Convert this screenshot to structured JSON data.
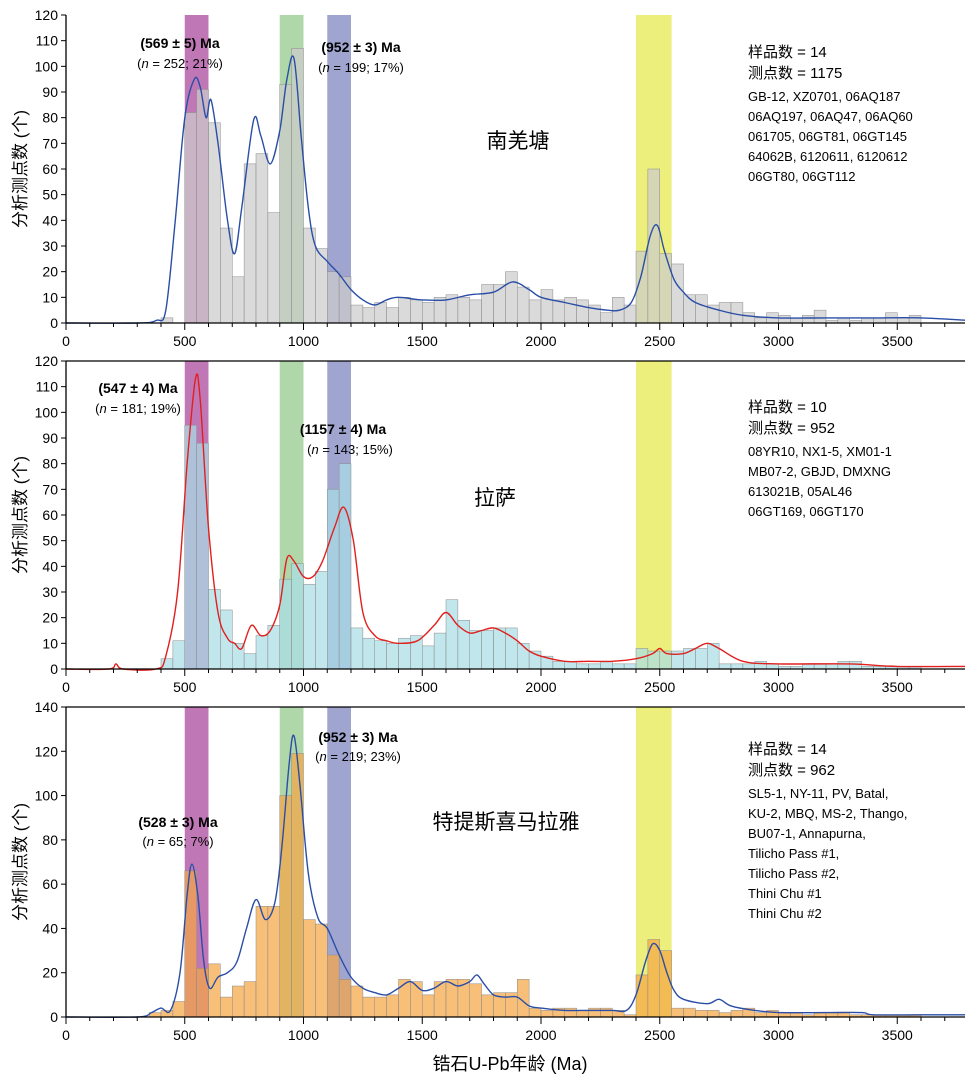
{
  "chart_data": [
    {
      "type": "bar",
      "panel": "top",
      "region": "南羌塘",
      "ylabel": "分析测点数 (个)",
      "ylim": [
        0,
        120
      ],
      "yticks": [
        0,
        10,
        20,
        30,
        40,
        50,
        60,
        70,
        80,
        90,
        100,
        110,
        120
      ],
      "xlim": [
        0,
        3800
      ],
      "xticks": [
        0,
        500,
        1000,
        1500,
        2000,
        2500,
        3000,
        3500
      ],
      "bin_width": 50,
      "bar_color": "#cccccc",
      "curve_color": "#2a4ea6",
      "x": [
        400,
        500,
        550,
        600,
        650,
        700,
        750,
        800,
        850,
        900,
        950,
        1000,
        1050,
        1100,
        1150,
        1200,
        1250,
        1300,
        1350,
        1400,
        1450,
        1500,
        1550,
        1600,
        1650,
        1700,
        1750,
        1800,
        1850,
        1900,
        1950,
        2000,
        2050,
        2100,
        2150,
        2200,
        2250,
        2300,
        2350,
        2400,
        2450,
        2500,
        2550,
        2600,
        2650,
        2700,
        2750,
        2800,
        2850,
        2900,
        2950,
        3000,
        3050,
        3100,
        3150,
        3200,
        3250,
        3300,
        3350,
        3400,
        3450,
        3500,
        3550
      ],
      "values": [
        2,
        82,
        91,
        78,
        37,
        18,
        62,
        66,
        43,
        93,
        107,
        37,
        29,
        20,
        18,
        7,
        6,
        8,
        6,
        10,
        9,
        8,
        10,
        11,
        10,
        9,
        15,
        15,
        20,
        14,
        9,
        13,
        9,
        10,
        9,
        7,
        4,
        10,
        7,
        28,
        60,
        27,
        23,
        11,
        11,
        7,
        8,
        8,
        4,
        2,
        4,
        3,
        2,
        3,
        5,
        1,
        2,
        1,
        2,
        2,
        4,
        2,
        3
      ],
      "kde": [
        [
          0,
          0
        ],
        [
          300,
          0
        ],
        [
          380,
          1
        ],
        [
          420,
          5
        ],
        [
          460,
          40
        ],
        [
          500,
          80
        ],
        [
          540,
          95
        ],
        [
          565,
          92
        ],
        [
          590,
          80
        ],
        [
          610,
          87
        ],
        [
          640,
          70
        ],
        [
          680,
          40
        ],
        [
          710,
          27
        ],
        [
          740,
          45
        ],
        [
          790,
          79
        ],
        [
          820,
          73
        ],
        [
          860,
          62
        ],
        [
          900,
          75
        ],
        [
          930,
          95
        ],
        [
          960,
          103
        ],
        [
          990,
          73
        ],
        [
          1020,
          45
        ],
        [
          1050,
          30
        ],
        [
          1100,
          24
        ],
        [
          1150,
          19
        ],
        [
          1200,
          13
        ],
        [
          1250,
          9
        ],
        [
          1300,
          7
        ],
        [
          1350,
          9
        ],
        [
          1400,
          10
        ],
        [
          1500,
          9
        ],
        [
          1600,
          9
        ],
        [
          1700,
          11
        ],
        [
          1800,
          12
        ],
        [
          1880,
          16
        ],
        [
          1950,
          13
        ],
        [
          2000,
          10
        ],
        [
          2100,
          8
        ],
        [
          2200,
          6
        ],
        [
          2280,
          5
        ],
        [
          2330,
          5
        ],
        [
          2380,
          8
        ],
        [
          2420,
          18
        ],
        [
          2460,
          34
        ],
        [
          2490,
          38
        ],
        [
          2520,
          28
        ],
        [
          2560,
          17
        ],
        [
          2600,
          12
        ],
        [
          2650,
          8
        ],
        [
          2750,
          5
        ],
        [
          2850,
          3
        ],
        [
          3000,
          2
        ],
        [
          3200,
          2
        ],
        [
          3400,
          2
        ],
        [
          3600,
          2
        ],
        [
          3800,
          1
        ]
      ],
      "peaks": [
        {
          "label": "(569 ± 5) Ma",
          "n_label": "n",
          "stat": " = 252; 21%)"
        },
        {
          "label": "(952 ± 3) Ma",
          "n_label": "n",
          "stat": " = 199; 17%)"
        }
      ],
      "info": {
        "samples": "样品数 = 14",
        "points": "测点数 = 1175",
        "names": [
          "GB-12, XZ0701, 06AQ187",
          "06AQ197, 06AQ47, 06AQ60",
          "061705, 06GT81, 06GT145",
          "64062B, 6120611, 6120612",
          "06GT80, 06GT112"
        ]
      }
    },
    {
      "type": "bar",
      "panel": "middle",
      "region": "拉萨",
      "ylabel": "分析测点数 (个)",
      "ylim": [
        0,
        120
      ],
      "yticks": [
        0,
        10,
        20,
        30,
        40,
        50,
        60,
        70,
        80,
        90,
        100,
        110,
        120
      ],
      "xlim": [
        0,
        3800
      ],
      "xticks": [
        0,
        500,
        1000,
        1500,
        2000,
        2500,
        3000,
        3500
      ],
      "bin_width": 50,
      "bar_color": "#a9dee6",
      "curve_color": "#e0201e",
      "x": [
        400,
        450,
        500,
        550,
        600,
        650,
        700,
        750,
        800,
        850,
        900,
        950,
        1000,
        1050,
        1100,
        1150,
        1200,
        1250,
        1300,
        1350,
        1400,
        1450,
        1500,
        1550,
        1600,
        1650,
        1700,
        1750,
        1800,
        1850,
        1900,
        1950,
        2000,
        2050,
        2100,
        2150,
        2200,
        2250,
        2300,
        2350,
        2400,
        2450,
        2500,
        2550,
        2600,
        2650,
        2700,
        2750,
        2800,
        2850,
        2900,
        2950,
        3000,
        3050,
        3100,
        3150,
        3200,
        3250,
        3300,
        3350,
        3400,
        3450,
        3500,
        3550
      ],
      "values": [
        4,
        11,
        95,
        88,
        31,
        23,
        10,
        6,
        13,
        17,
        35,
        41,
        33,
        38,
        70,
        80,
        16,
        12,
        11,
        10,
        12,
        13,
        9,
        14,
        27,
        19,
        15,
        15,
        16,
        16,
        10,
        7,
        5,
        3,
        3,
        2,
        2,
        3,
        2,
        2,
        8,
        7,
        7,
        7,
        8,
        8,
        10,
        2,
        2,
        2,
        3,
        2,
        1,
        1,
        2,
        2,
        2,
        3,
        3,
        1,
        1,
        1,
        1,
        1
      ],
      "kde": [
        [
          0,
          0
        ],
        [
          180,
          0
        ],
        [
          210,
          2
        ],
        [
          240,
          0
        ],
        [
          380,
          0
        ],
        [
          420,
          5
        ],
        [
          470,
          30
        ],
        [
          510,
          80
        ],
        [
          545,
          113
        ],
        [
          565,
          105
        ],
        [
          600,
          55
        ],
        [
          640,
          22
        ],
        [
          680,
          12
        ],
        [
          710,
          10
        ],
        [
          740,
          8
        ],
        [
          780,
          17
        ],
        [
          820,
          13
        ],
        [
          860,
          15
        ],
        [
          900,
          25
        ],
        [
          930,
          43
        ],
        [
          960,
          42
        ],
        [
          1000,
          36
        ],
        [
          1040,
          36
        ],
        [
          1080,
          42
        ],
        [
          1130,
          55
        ],
        [
          1170,
          63
        ],
        [
          1210,
          50
        ],
        [
          1250,
          22
        ],
        [
          1300,
          13
        ],
        [
          1350,
          11
        ],
        [
          1400,
          10
        ],
        [
          1480,
          11
        ],
        [
          1550,
          17
        ],
        [
          1600,
          22
        ],
        [
          1650,
          17
        ],
        [
          1700,
          14
        ],
        [
          1750,
          15
        ],
        [
          1800,
          16
        ],
        [
          1850,
          14
        ],
        [
          1900,
          11
        ],
        [
          1950,
          7
        ],
        [
          2000,
          5
        ],
        [
          2100,
          3
        ],
        [
          2200,
          3
        ],
        [
          2300,
          3
        ],
        [
          2400,
          4
        ],
        [
          2470,
          6
        ],
        [
          2500,
          8
        ],
        [
          2530,
          6
        ],
        [
          2600,
          6
        ],
        [
          2650,
          8
        ],
        [
          2700,
          10
        ],
        [
          2750,
          8
        ],
        [
          2850,
          3
        ],
        [
          3000,
          2
        ],
        [
          3300,
          2
        ],
        [
          3500,
          1
        ],
        [
          3800,
          1
        ]
      ],
      "peaks": [
        {
          "label": "(547 ± 4) Ma",
          "n_label": "n",
          "stat": " = 181; 19%)"
        },
        {
          "label": "(1157 ± 4) Ma",
          "n_label": "n",
          "stat": " = 143; 15%)"
        }
      ],
      "info": {
        "samples": "样品数 = 10",
        "points": "测点数 = 952",
        "names": [
          "08YR10, NX1-5, XM01-1",
          "MB07-2, GBJD, DMXNG",
          "613021B, 05AL46",
          "06GT169, 06GT170"
        ]
      }
    },
    {
      "type": "bar",
      "panel": "bottom",
      "region": "特提斯喜马拉雅",
      "ylabel": "分析测点数 (个)",
      "xlabel": "锆石U-Pb年龄 (Ma)",
      "ylim": [
        0,
        140
      ],
      "yticks": [
        0,
        20,
        40,
        60,
        80,
        100,
        120,
        140
      ],
      "xlim": [
        0,
        3800
      ],
      "xticks": [
        0,
        500,
        1000,
        1500,
        2000,
        2500,
        3000,
        3500
      ],
      "bin_width": 50,
      "bar_color": "#f5a645",
      "curve_color": "#2a4ea6",
      "x": [
        350,
        400,
        450,
        500,
        550,
        600,
        650,
        700,
        750,
        800,
        850,
        900,
        950,
        1000,
        1050,
        1100,
        1150,
        1200,
        1250,
        1300,
        1350,
        1400,
        1450,
        1500,
        1550,
        1600,
        1650,
        1700,
        1750,
        1800,
        1850,
        1900,
        1950,
        2000,
        2050,
        2100,
        2150,
        2200,
        2250,
        2300,
        2350,
        2400,
        2450,
        2500,
        2550,
        2600,
        2650,
        2700,
        2750,
        2800,
        2850,
        2900,
        2950,
        3000,
        3050,
        3100,
        3150,
        3200,
        3250,
        3300,
        3350,
        3400,
        3450,
        3500,
        3550
      ],
      "values": [
        2,
        3,
        7,
        66,
        22,
        24,
        9,
        14,
        16,
        50,
        50,
        100,
        119,
        44,
        42,
        28,
        17,
        14,
        9,
        9,
        10,
        17,
        16,
        10,
        16,
        17,
        17,
        15,
        10,
        11,
        11,
        17,
        4,
        3,
        4,
        4,
        3,
        4,
        4,
        3,
        1,
        19,
        35,
        30,
        4,
        4,
        3,
        3,
        2,
        3,
        4,
        2,
        3,
        2,
        2,
        1,
        2,
        2,
        2,
        1,
        1,
        1,
        1,
        1,
        1
      ],
      "kde": [
        [
          0,
          0
        ],
        [
          300,
          0
        ],
        [
          360,
          2
        ],
        [
          400,
          4
        ],
        [
          440,
          3
        ],
        [
          480,
          20
        ],
        [
          510,
          55
        ],
        [
          530,
          69
        ],
        [
          555,
          55
        ],
        [
          580,
          25
        ],
        [
          605,
          13
        ],
        [
          640,
          18
        ],
        [
          680,
          20
        ],
        [
          720,
          25
        ],
        [
          760,
          40
        ],
        [
          800,
          53
        ],
        [
          840,
          44
        ],
        [
          880,
          52
        ],
        [
          910,
          78
        ],
        [
          940,
          115
        ],
        [
          960,
          127
        ],
        [
          985,
          105
        ],
        [
          1020,
          65
        ],
        [
          1060,
          45
        ],
        [
          1100,
          40
        ],
        [
          1150,
          28
        ],
        [
          1200,
          18
        ],
        [
          1250,
          13
        ],
        [
          1300,
          11
        ],
        [
          1350,
          10
        ],
        [
          1400,
          13
        ],
        [
          1450,
          16
        ],
        [
          1500,
          12
        ],
        [
          1550,
          13
        ],
        [
          1600,
          16
        ],
        [
          1650,
          14
        ],
        [
          1700,
          16
        ],
        [
          1730,
          19
        ],
        [
          1760,
          15
        ],
        [
          1800,
          10
        ],
        [
          1850,
          9
        ],
        [
          1900,
          9
        ],
        [
          1950,
          5
        ],
        [
          2000,
          4
        ],
        [
          2100,
          3
        ],
        [
          2200,
          3
        ],
        [
          2300,
          3
        ],
        [
          2360,
          3
        ],
        [
          2400,
          10
        ],
        [
          2440,
          25
        ],
        [
          2470,
          33
        ],
        [
          2500,
          30
        ],
        [
          2530,
          20
        ],
        [
          2560,
          12
        ],
        [
          2600,
          8
        ],
        [
          2700,
          6
        ],
        [
          2750,
          8
        ],
        [
          2800,
          5
        ],
        [
          2900,
          3
        ],
        [
          3000,
          2
        ],
        [
          3200,
          2
        ],
        [
          3350,
          2
        ],
        [
          3400,
          1
        ],
        [
          3600,
          1
        ],
        [
          3800,
          1
        ]
      ],
      "peaks": [
        {
          "label": "(528 ± 3) Ma",
          "n_label": "n",
          "stat": " = 65; 7%)"
        },
        {
          "label": "(952 ± 3) Ma",
          "n_label": "n",
          "stat": " = 219; 23%)"
        }
      ],
      "info": {
        "samples": "样品数 = 14",
        "points": "测点数 = 962",
        "names": [
          "SL5-1, NY-11, PV, Batal,",
          "KU-2, MBQ, MS-2, Thango,",
          "BU07-1, Annapurna,",
          "Tilicho Pass #1,",
          "Tilicho Pass #2,",
          "Thini Chu #1",
          "Thini Chu #2"
        ]
      }
    }
  ],
  "highlight_bands": [
    {
      "from": 500,
      "to": 600,
      "color": "#a94b9c"
    },
    {
      "from": 900,
      "to": 1000,
      "color": "#94c98d"
    },
    {
      "from": 1100,
      "to": 1200,
      "color": "#8087c0"
    },
    {
      "from": 2400,
      "to": 2550,
      "color": "#e6ea4f"
    }
  ]
}
